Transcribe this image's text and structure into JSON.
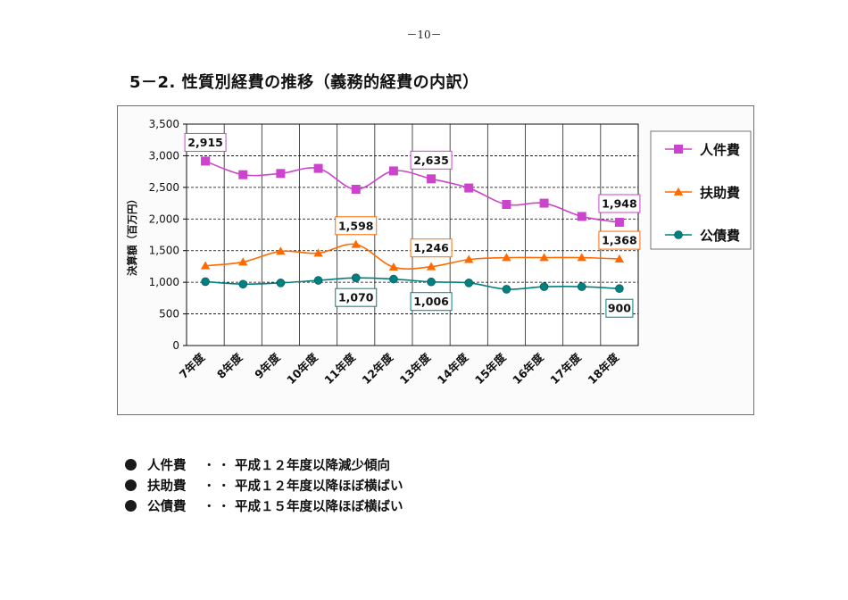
{
  "page": {
    "number": "－10－",
    "title": "5－2. 性質別経費の推移（義務的経費の内訳）"
  },
  "colors": {
    "personnel": "#cc44cc",
    "assistance": "#ff6a00",
    "debt": "#008080",
    "plot_bg": "#ffffff",
    "grid": "#000000"
  },
  "chart_data": {
    "type": "line",
    "title": "",
    "xlabel": "",
    "ylabel": "決算額（百万円）",
    "ylim": [
      0,
      3500
    ],
    "y_ticks": [
      0,
      500,
      1000,
      1500,
      2000,
      2500,
      3000,
      3500
    ],
    "y_tick_labels": [
      "0",
      "500",
      "1,000",
      "1,500",
      "2,000",
      "2,500",
      "3,000",
      "3,500"
    ],
    "grid": "horizontal dashed + vertical solid",
    "legend_position": "right",
    "categories": [
      "7年度",
      "8年度",
      "9年度",
      "10年度",
      "11年度",
      "12年度",
      "13年度",
      "14年度",
      "15年度",
      "16年度",
      "17年度",
      "18年度"
    ],
    "series": [
      {
        "name": "人件費",
        "color": "#cc44cc",
        "marker": "square",
        "values": [
          2915,
          2700,
          2720,
          2800,
          2470,
          2760,
          2635,
          2490,
          2230,
          2250,
          2040,
          1948
        ]
      },
      {
        "name": "扶助費",
        "color": "#ff6a00",
        "marker": "triangle",
        "values": [
          1260,
          1320,
          1490,
          1460,
          1598,
          1240,
          1246,
          1360,
          1390,
          1390,
          1390,
          1368
        ]
      },
      {
        "name": "公債費",
        "color": "#008080",
        "marker": "circle",
        "values": [
          1010,
          970,
          990,
          1030,
          1070,
          1050,
          1006,
          990,
          890,
          930,
          930,
          900
        ]
      }
    ],
    "data_labels": [
      {
        "series": 0,
        "index": 0,
        "text": "2,915"
      },
      {
        "series": 0,
        "index": 6,
        "text": "2,635"
      },
      {
        "series": 0,
        "index": 11,
        "text": "1,948"
      },
      {
        "series": 1,
        "index": 4,
        "text": "1,598"
      },
      {
        "series": 1,
        "index": 6,
        "text": "1,246"
      },
      {
        "series": 1,
        "index": 11,
        "text": "1,368"
      },
      {
        "series": 2,
        "index": 4,
        "text": "1,070"
      },
      {
        "series": 2,
        "index": 6,
        "text": "1,006"
      },
      {
        "series": 2,
        "index": 11,
        "text": "900"
      }
    ]
  },
  "notes": [
    {
      "label": "人件費",
      "dots": "・・・",
      "text": "平成１２年度以降減少傾向"
    },
    {
      "label": "扶助費",
      "dots": "・・・",
      "text": "平成１２年度以降ほぼ横ばい"
    },
    {
      "label": "公債費",
      "dots": "・・・",
      "text": "平成１５年度以降ほぼ横ばい"
    }
  ]
}
